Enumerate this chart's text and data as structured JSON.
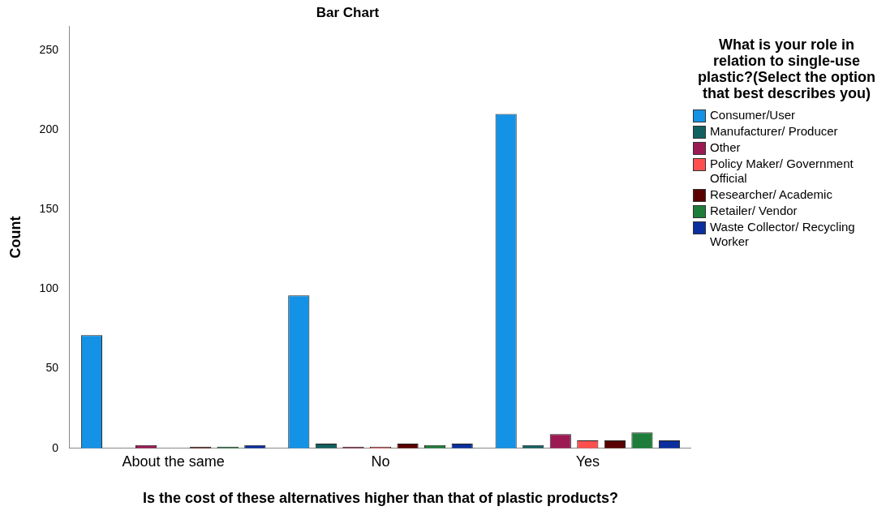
{
  "chart_data": {
    "type": "bar",
    "title": "Bar Chart",
    "xlabel": "Is the cost of these alternatives higher than that of plastic products?",
    "ylabel": "Count",
    "legend_title": "What is your role in relation to single-use plastic?(Select the option that best describes you)",
    "categories": [
      "About the same",
      "No",
      "Yes"
    ],
    "series": [
      {
        "name": "Consumer/User",
        "color": "#1492e6",
        "values": [
          71,
          96,
          210
        ]
      },
      {
        "name": "Manufacturer/ Producer",
        "color": "#136060",
        "values": [
          0,
          3,
          2
        ]
      },
      {
        "name": "Other",
        "color": "#9c1a54",
        "values": [
          2,
          1,
          9
        ]
      },
      {
        "name": "Policy Maker/ Government Official",
        "color": "#ff5050",
        "values": [
          0,
          1,
          5
        ]
      },
      {
        "name": "Researcher/ Academic",
        "color": "#5a0000",
        "values": [
          1,
          3,
          5
        ]
      },
      {
        "name": "Retailer/ Vendor",
        "color": "#1e7d3a",
        "values": [
          1,
          2,
          10
        ]
      },
      {
        "name": "Waste Collector/ Recycling Worker",
        "color": "#0b2f9e",
        "values": [
          2,
          3,
          5
        ]
      }
    ],
    "ylim": [
      0,
      265
    ],
    "yticks": [
      0,
      50,
      100,
      150,
      200,
      250
    ],
    "grid": false,
    "legend": "right"
  }
}
